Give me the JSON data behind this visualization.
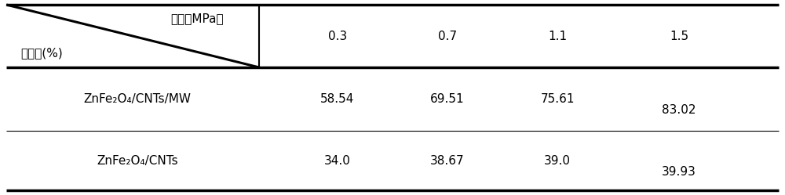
{
  "col_header_top": "压力（MPa）",
  "col_header_left": "去除率(%)",
  "col_values": [
    "0.3",
    "0.7",
    "1.1",
    "1.5"
  ],
  "row1_label": "ZnFe₂O₄/CNTs/MW",
  "row1_values": [
    "58.54",
    "69.51",
    "75.61",
    "83.02"
  ],
  "row2_label": "ZnFe₂O₄/CNTs",
  "row2_values": [
    "34.0",
    "38.67",
    "39.0",
    "39.93"
  ],
  "bg_color": "#ffffff",
  "text_color": "#000000",
  "thick_lw": 2.5,
  "thin_lw": 0.8,
  "font_size": 11,
  "header_font_size": 11
}
